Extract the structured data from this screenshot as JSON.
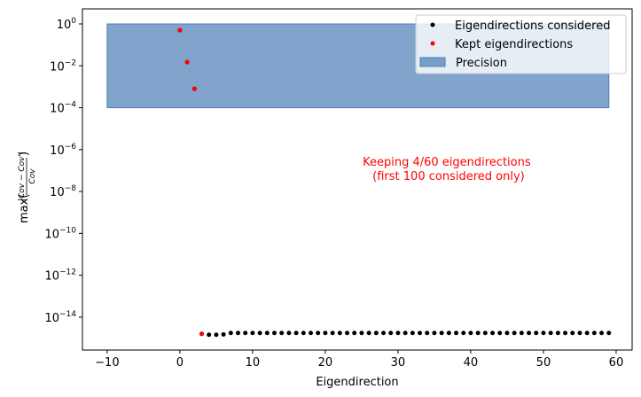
{
  "chart_data": {
    "type": "scatter",
    "xlabel": "Eigendirection",
    "ylabel": {
      "prefix": "max(",
      "numerator": "|Cov − Cov'|",
      "denominator": "Cov",
      "suffix": ")"
    },
    "yscale": "log",
    "xlim": [
      -13.4,
      62.2
    ],
    "ylim_log10": [
      -15.57,
      0.72
    ],
    "xticks": [
      {
        "value": -10,
        "label": "−10"
      },
      {
        "value": 0,
        "label": "0"
      },
      {
        "value": 10,
        "label": "10"
      },
      {
        "value": 20,
        "label": "20"
      },
      {
        "value": 30,
        "label": "30"
      },
      {
        "value": 40,
        "label": "40"
      },
      {
        "value": 50,
        "label": "50"
      },
      {
        "value": 60,
        "label": "60"
      }
    ],
    "yticks": [
      {
        "log": 0,
        "base": "10",
        "exp": "0"
      },
      {
        "log": -2,
        "base": "10",
        "exp": "−2"
      },
      {
        "log": -4,
        "base": "10",
        "exp": "−4"
      },
      {
        "log": -6,
        "base": "10",
        "exp": "−6"
      },
      {
        "log": -8,
        "base": "10",
        "exp": "−8"
      },
      {
        "log": -10,
        "base": "10",
        "exp": "−10"
      },
      {
        "log": -12,
        "base": "10",
        "exp": "−12"
      },
      {
        "log": -14,
        "base": "10",
        "exp": "−14"
      }
    ],
    "series": [
      {
        "name": "Eigendirections considered",
        "color": "#000000",
        "x_start": 0,
        "x_end": 59,
        "values_explicit": {
          "0": 0.5,
          "1": 0.015,
          "2": 0.0008,
          "3": 1.6e-15,
          "4": 1.45e-15,
          "5": 1.45e-15,
          "6": 1.5e-15
        },
        "default_value": 1.75e-15
      },
      {
        "name": "Kept eigendirections",
        "color": "#ff0000",
        "x": [
          0,
          1,
          2,
          3
        ],
        "y": [
          0.5,
          0.015,
          0.0008,
          1.6e-15
        ]
      }
    ],
    "region": {
      "name": "Precision",
      "x": [
        -10,
        59
      ],
      "y": [
        0.0001,
        1
      ],
      "color": "#4a7db5"
    },
    "annotation": {
      "lines": [
        "Keeping 4/60 eigendirections",
        " (first 100 considered only)"
      ],
      "color": "#ff0000",
      "x": 36.7,
      "y_log10": -6.9
    },
    "legend": {
      "position": "upper-right",
      "entries": [
        "Eigendirections considered",
        "Kept eigendirections",
        "Precision"
      ]
    }
  }
}
